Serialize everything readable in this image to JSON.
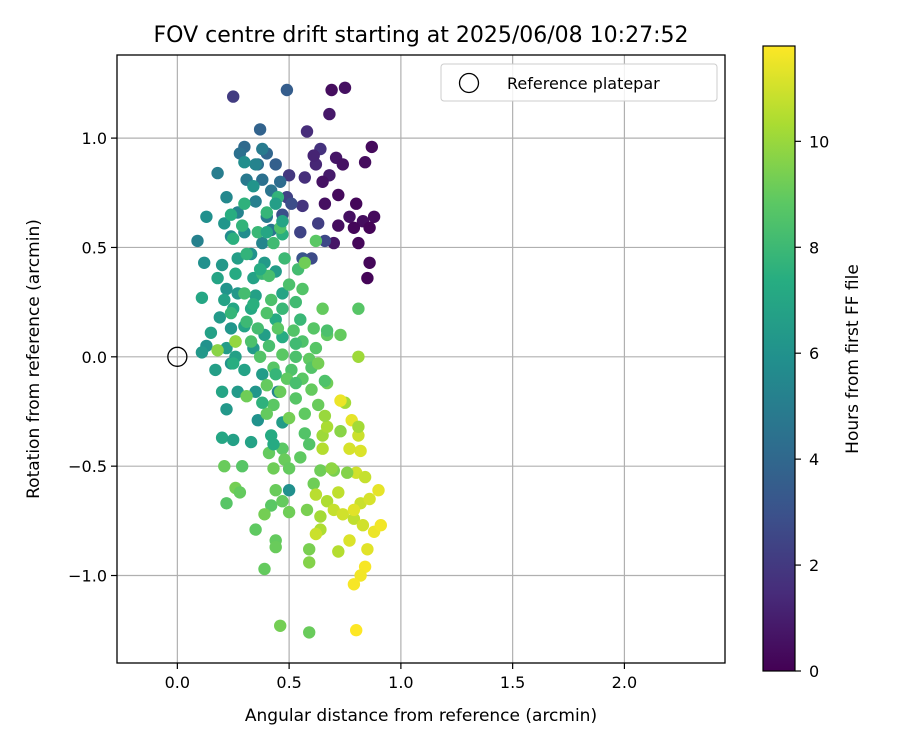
{
  "chart_data": {
    "type": "scatter",
    "title": "FOV centre drift starting at 2025/06/08 10:27:52",
    "xlabel": "Angular distance from reference (arcmin)",
    "ylabel": "Rotation from reference (arcmin)",
    "xlim": [
      -0.27,
      2.45
    ],
    "ylim": [
      -1.4,
      1.38
    ],
    "xticks": [
      0.0,
      0.5,
      1.0,
      1.5,
      2.0
    ],
    "xtick_labels": [
      "0.0",
      "0.5",
      "1.0",
      "1.5",
      "2.0"
    ],
    "yticks": [
      -1.0,
      -0.5,
      0.0,
      0.5,
      1.0
    ],
    "ytick_labels": [
      "−1.0",
      "−0.5",
      "0.0",
      "0.5",
      "1.0"
    ],
    "grid": true,
    "legend": {
      "placement": "top-right",
      "entries": [
        {
          "label": "Reference platepar",
          "marker": "open-circle"
        }
      ]
    },
    "reference_point": {
      "x": 0.0,
      "y": 0.0
    },
    "colorbar": {
      "label": "Hours from first FF file",
      "colormap": "viridis",
      "range": [
        0,
        11.8
      ],
      "ticks": [
        0,
        2,
        4,
        6,
        8,
        10
      ],
      "tick_labels": [
        "0",
        "2",
        "4",
        "6",
        "8",
        "10"
      ]
    },
    "points": [
      [
        0.69,
        1.22,
        0.4
      ],
      [
        0.75,
        1.23,
        0.5
      ],
      [
        0.68,
        1.11,
        0.8
      ],
      [
        0.87,
        0.96,
        0.3
      ],
      [
        0.84,
        0.89,
        0.4
      ],
      [
        0.71,
        0.91,
        0.7
      ],
      [
        0.74,
        0.88,
        0.6
      ],
      [
        0.68,
        0.83,
        0.9
      ],
      [
        0.65,
        0.8,
        0.6
      ],
      [
        0.72,
        0.74,
        0.3
      ],
      [
        0.8,
        0.7,
        0.2
      ],
      [
        0.66,
        0.7,
        0.5
      ],
      [
        0.77,
        0.64,
        0.5
      ],
      [
        0.83,
        0.62,
        0.4
      ],
      [
        0.88,
        0.64,
        0.3
      ],
      [
        0.72,
        0.6,
        0.4
      ],
      [
        0.79,
        0.59,
        0.2
      ],
      [
        0.86,
        0.59,
        0.1
      ],
      [
        0.81,
        0.52,
        0.2
      ],
      [
        0.7,
        0.52,
        0.7
      ],
      [
        0.86,
        0.43,
        0.2
      ],
      [
        0.85,
        0.36,
        0.1
      ],
      [
        0.62,
        0.88,
        1.3
      ],
      [
        0.58,
        1.03,
        1.5
      ],
      [
        0.64,
        0.95,
        1.7
      ],
      [
        0.61,
        0.92,
        1.2
      ],
      [
        0.57,
        0.82,
        1.6
      ],
      [
        0.5,
        0.83,
        1.9
      ],
      [
        0.49,
        0.73,
        2.3
      ],
      [
        0.56,
        0.69,
        1.8
      ],
      [
        0.63,
        0.61,
        2.2
      ],
      [
        0.66,
        0.53,
        2.6
      ],
      [
        0.51,
        0.7,
        2.8
      ],
      [
        0.47,
        0.65,
        2.9
      ],
      [
        0.55,
        0.57,
        2.4
      ],
      [
        0.6,
        0.45,
        2.7
      ],
      [
        0.56,
        0.45,
        3.1
      ],
      [
        0.25,
        1.19,
        2.1
      ],
      [
        0.49,
        1.22,
        3.5
      ],
      [
        0.37,
        1.04,
        3.8
      ],
      [
        0.3,
        0.96,
        4.1
      ],
      [
        0.36,
        0.88,
        4.3
      ],
      [
        0.4,
        0.93,
        3.9
      ],
      [
        0.44,
        0.88,
        3.6
      ],
      [
        0.28,
        0.93,
        4.4
      ],
      [
        0.31,
        0.81,
        4.8
      ],
      [
        0.38,
        0.81,
        4.4
      ],
      [
        0.42,
        0.76,
        4.6
      ],
      [
        0.46,
        0.8,
        4.2
      ],
      [
        0.35,
        0.71,
        5.1
      ],
      [
        0.27,
        0.66,
        5.3
      ],
      [
        0.4,
        0.64,
        4.9
      ],
      [
        0.22,
        0.73,
        5.5
      ],
      [
        0.18,
        0.84,
        5.0
      ],
      [
        0.13,
        0.64,
        5.9
      ],
      [
        0.09,
        0.53,
        5.2
      ],
      [
        0.21,
        0.61,
        6.2
      ],
      [
        0.24,
        0.55,
        5.7
      ],
      [
        0.3,
        0.57,
        5.8
      ],
      [
        0.38,
        0.52,
        5.4
      ],
      [
        0.42,
        0.58,
        4.7
      ],
      [
        0.33,
        0.47,
        6.0
      ],
      [
        0.12,
        0.43,
        5.9
      ],
      [
        0.2,
        0.42,
        6.3
      ],
      [
        0.27,
        0.45,
        6.6
      ],
      [
        0.39,
        0.43,
        6.4
      ],
      [
        0.34,
        0.36,
        6.8
      ],
      [
        0.44,
        0.39,
        6.5
      ],
      [
        0.18,
        0.36,
        6.9
      ],
      [
        0.22,
        0.31,
        6.1
      ],
      [
        0.27,
        0.29,
        6.3
      ],
      [
        0.35,
        0.28,
        6.7
      ],
      [
        0.47,
        0.29,
        6.9
      ],
      [
        0.11,
        0.27,
        7.0
      ],
      [
        0.21,
        0.26,
        6.8
      ],
      [
        0.25,
        0.22,
        7.0
      ],
      [
        0.33,
        0.22,
        7.1
      ],
      [
        0.44,
        0.17,
        7.2
      ],
      [
        0.19,
        0.18,
        6.4
      ],
      [
        0.15,
        0.11,
        6.7
      ],
      [
        0.24,
        0.13,
        6.2
      ],
      [
        0.3,
        0.14,
        6.9
      ],
      [
        0.39,
        0.1,
        6.6
      ],
      [
        0.47,
        0.09,
        7.3
      ],
      [
        0.13,
        0.05,
        6.0
      ],
      [
        0.22,
        0.04,
        6.5
      ],
      [
        0.26,
        0.0,
        6.7
      ],
      [
        0.34,
        0.04,
        6.4
      ],
      [
        0.11,
        0.02,
        6.3
      ],
      [
        0.17,
        -0.06,
        6.6
      ],
      [
        0.24,
        -0.03,
        6.1
      ],
      [
        0.3,
        -0.06,
        6.8
      ],
      [
        0.38,
        -0.08,
        6.5
      ],
      [
        0.2,
        -0.16,
        6.9
      ],
      [
        0.27,
        -0.16,
        6.4
      ],
      [
        0.35,
        -0.16,
        6.2
      ],
      [
        0.22,
        -0.24,
        6.3
      ],
      [
        0.45,
        -0.16,
        5.4
      ],
      [
        0.36,
        -0.29,
        6.0
      ],
      [
        0.47,
        -0.3,
        6.5
      ],
      [
        0.33,
        -0.39,
        6.8
      ],
      [
        0.2,
        -0.37,
        7.0
      ],
      [
        0.25,
        -0.38,
        6.7
      ],
      [
        0.5,
        -0.61,
        5.9
      ],
      [
        0.42,
        -0.36,
        7.2
      ],
      [
        0.3,
        0.7,
        7.6
      ],
      [
        0.4,
        0.66,
        7.8
      ],
      [
        0.45,
        0.73,
        7.7
      ],
      [
        0.24,
        0.65,
        7.4
      ],
      [
        0.29,
        0.6,
        7.7
      ],
      [
        0.25,
        0.54,
        7.5
      ],
      [
        0.36,
        0.57,
        7.9
      ],
      [
        0.43,
        0.52,
        8.1
      ],
      [
        0.47,
        0.56,
        7.5
      ],
      [
        0.31,
        0.47,
        7.7
      ],
      [
        0.38,
        0.38,
        7.9
      ],
      [
        0.48,
        0.45,
        8.0
      ],
      [
        0.54,
        0.4,
        8.2
      ],
      [
        0.41,
        0.37,
        8.3
      ],
      [
        0.5,
        0.33,
        8.4
      ],
      [
        0.56,
        0.31,
        8.6
      ],
      [
        0.3,
        0.29,
        8.2
      ],
      [
        0.42,
        0.26,
        8.4
      ],
      [
        0.53,
        0.25,
        8.1
      ],
      [
        0.47,
        0.22,
        7.9
      ],
      [
        0.4,
        0.2,
        8.5
      ],
      [
        0.31,
        0.16,
        8.0
      ],
      [
        0.36,
        0.13,
        8.2
      ],
      [
        0.45,
        0.13,
        8.8
      ],
      [
        0.52,
        0.12,
        8.6
      ],
      [
        0.61,
        0.13,
        8.7
      ],
      [
        0.67,
        0.1,
        8.9
      ],
      [
        0.26,
        0.07,
        8.6
      ],
      [
        0.33,
        0.07,
        8.4
      ],
      [
        0.41,
        0.05,
        8.3
      ],
      [
        0.56,
        0.07,
        8.5
      ],
      [
        0.62,
        0.04,
        8.7
      ],
      [
        0.37,
        0.0,
        8.6
      ],
      [
        0.47,
        0.01,
        8.8
      ],
      [
        0.53,
        0.0,
        8.4
      ],
      [
        0.59,
        -0.01,
        8.9
      ],
      [
        0.43,
        -0.05,
        8.7
      ],
      [
        0.51,
        -0.06,
        8.5
      ],
      [
        0.6,
        -0.05,
        8.6
      ],
      [
        0.49,
        -0.1,
        8.9
      ],
      [
        0.56,
        -0.1,
        8.8
      ],
      [
        0.4,
        -0.13,
        9.0
      ],
      [
        0.46,
        -0.16,
        9.1
      ],
      [
        0.53,
        -0.12,
        8.3
      ],
      [
        0.6,
        -0.15,
        9.0
      ],
      [
        0.67,
        -0.12,
        9.2
      ],
      [
        0.43,
        -0.22,
        8.8
      ],
      [
        0.53,
        -0.19,
        8.7
      ],
      [
        0.63,
        -0.22,
        9.1
      ],
      [
        0.31,
        -0.18,
        9.2
      ],
      [
        0.4,
        -0.26,
        9.0
      ],
      [
        0.5,
        -0.28,
        9.3
      ],
      [
        0.57,
        -0.26,
        8.9
      ],
      [
        0.47,
        -0.42,
        8.8
      ],
      [
        0.59,
        -0.4,
        8.6
      ],
      [
        0.41,
        -0.44,
        9.0
      ],
      [
        0.48,
        -0.47,
        9.1
      ],
      [
        0.55,
        -0.46,
        8.9
      ],
      [
        0.43,
        -0.51,
        9.2
      ],
      [
        0.5,
        -0.51,
        9.0
      ],
      [
        0.29,
        -0.5,
        8.7
      ],
      [
        0.21,
        -0.5,
        9.1
      ],
      [
        0.64,
        -0.52,
        9.2
      ],
      [
        0.7,
        -0.52,
        9.4
      ],
      [
        0.61,
        -0.58,
        9.2
      ],
      [
        0.26,
        -0.6,
        9.3
      ],
      [
        0.28,
        -0.62,
        9.0
      ],
      [
        0.44,
        -0.61,
        9.1
      ],
      [
        0.22,
        -0.67,
        8.7
      ],
      [
        0.42,
        -0.68,
        8.8
      ],
      [
        0.47,
        -0.66,
        9.0
      ],
      [
        0.5,
        -0.71,
        9.2
      ],
      [
        0.39,
        -0.72,
        9.3
      ],
      [
        0.58,
        -0.7,
        9.4
      ],
      [
        0.35,
        -0.79,
        8.9
      ],
      [
        0.44,
        -0.84,
        9.0
      ],
      [
        0.44,
        -0.87,
        9.1
      ],
      [
        0.59,
        -0.88,
        9.4
      ],
      [
        0.59,
        -0.94,
        9.6
      ],
      [
        0.39,
        -0.97,
        9.0
      ],
      [
        0.46,
        -1.23,
        9.3
      ],
      [
        0.59,
        -1.26,
        9.1
      ],
      [
        0.69,
        -0.51,
        9.8
      ],
      [
        0.65,
        -0.36,
        10.1
      ],
      [
        0.67,
        -0.32,
        10.3
      ],
      [
        0.73,
        -0.34,
        9.7
      ],
      [
        0.65,
        -0.42,
        10.5
      ],
      [
        0.66,
        -0.27,
        10.0
      ],
      [
        0.75,
        -0.21,
        10.2
      ],
      [
        0.62,
        -0.63,
        10.6
      ],
      [
        0.67,
        -0.66,
        10.4
      ],
      [
        0.7,
        -0.7,
        10.8
      ],
      [
        0.74,
        -0.72,
        11.0
      ],
      [
        0.79,
        -0.74,
        10.7
      ],
      [
        0.82,
        -0.67,
        10.9
      ],
      [
        0.86,
        -0.65,
        11.1
      ],
      [
        0.64,
        -0.73,
        10.2
      ],
      [
        0.64,
        -0.79,
        10.4
      ],
      [
        0.62,
        -0.81,
        10.9
      ],
      [
        0.77,
        -0.84,
        11.2
      ],
      [
        0.72,
        -0.89,
        10.5
      ],
      [
        0.85,
        -0.88,
        11.3
      ],
      [
        0.88,
        -0.8,
        11.5
      ],
      [
        0.91,
        -0.77,
        11.6
      ],
      [
        0.83,
        -0.77,
        11.0
      ],
      [
        0.9,
        -0.61,
        11.4
      ],
      [
        0.84,
        -0.96,
        11.7
      ],
      [
        0.82,
        -1.0,
        11.6
      ],
      [
        0.79,
        -1.04,
        11.7
      ],
      [
        0.8,
        -1.25,
        11.8
      ],
      [
        0.78,
        -0.29,
        11.4
      ],
      [
        0.82,
        -0.43,
        11.2
      ],
      [
        0.8,
        -0.53,
        11.0
      ],
      [
        0.84,
        -0.55,
        10.8
      ],
      [
        0.76,
        -0.53,
        9.6
      ],
      [
        0.72,
        -0.62,
        10.7
      ],
      [
        0.79,
        -0.7,
        11.3
      ],
      [
        0.77,
        -0.42,
        11.1
      ],
      [
        0.73,
        -0.2,
        11.5
      ],
      [
        0.81,
        -0.36,
        10.9
      ],
      [
        0.81,
        -0.32,
        10.2
      ],
      [
        0.81,
        0.0,
        10.1
      ],
      [
        0.73,
        0.1,
        9.0
      ],
      [
        0.67,
        0.12,
        8.4
      ],
      [
        0.81,
        0.22,
        8.7
      ],
      [
        0.62,
        0.53,
        8.8
      ],
      [
        0.57,
        0.43,
        9.2
      ],
      [
        0.63,
        -0.03,
        9.3
      ],
      [
        0.66,
        -0.11,
        8.5
      ],
      [
        0.53,
        0.06,
        8.1
      ],
      [
        0.65,
        0.22,
        9.0
      ],
      [
        0.18,
        0.03,
        9.7
      ],
      [
        0.26,
        0.07,
        9.9
      ],
      [
        0.25,
        -0.03,
        7.4
      ],
      [
        0.57,
        -0.35,
        8.6
      ],
      [
        0.46,
        0.59,
        8.5
      ],
      [
        0.43,
        -0.4,
        7.2
      ],
      [
        0.38,
        -0.21,
        7.6
      ],
      [
        0.44,
        -0.08,
        7.8
      ],
      [
        0.24,
        0.2,
        7.8
      ],
      [
        0.34,
        0.24,
        7.5
      ],
      [
        0.55,
        0.17,
        7.9
      ],
      [
        0.37,
        0.4,
        7.3
      ],
      [
        0.4,
        0.57,
        7.0
      ],
      [
        0.26,
        0.38,
        7.2
      ],
      [
        0.47,
        0.62,
        6.9
      ],
      [
        0.44,
        0.7,
        6.6
      ],
      [
        0.35,
        0.88,
        5.3
      ],
      [
        0.38,
        0.95,
        4.9
      ],
      [
        0.3,
        0.89,
        5.8
      ],
      [
        0.34,
        0.78,
        6.1
      ]
    ]
  }
}
